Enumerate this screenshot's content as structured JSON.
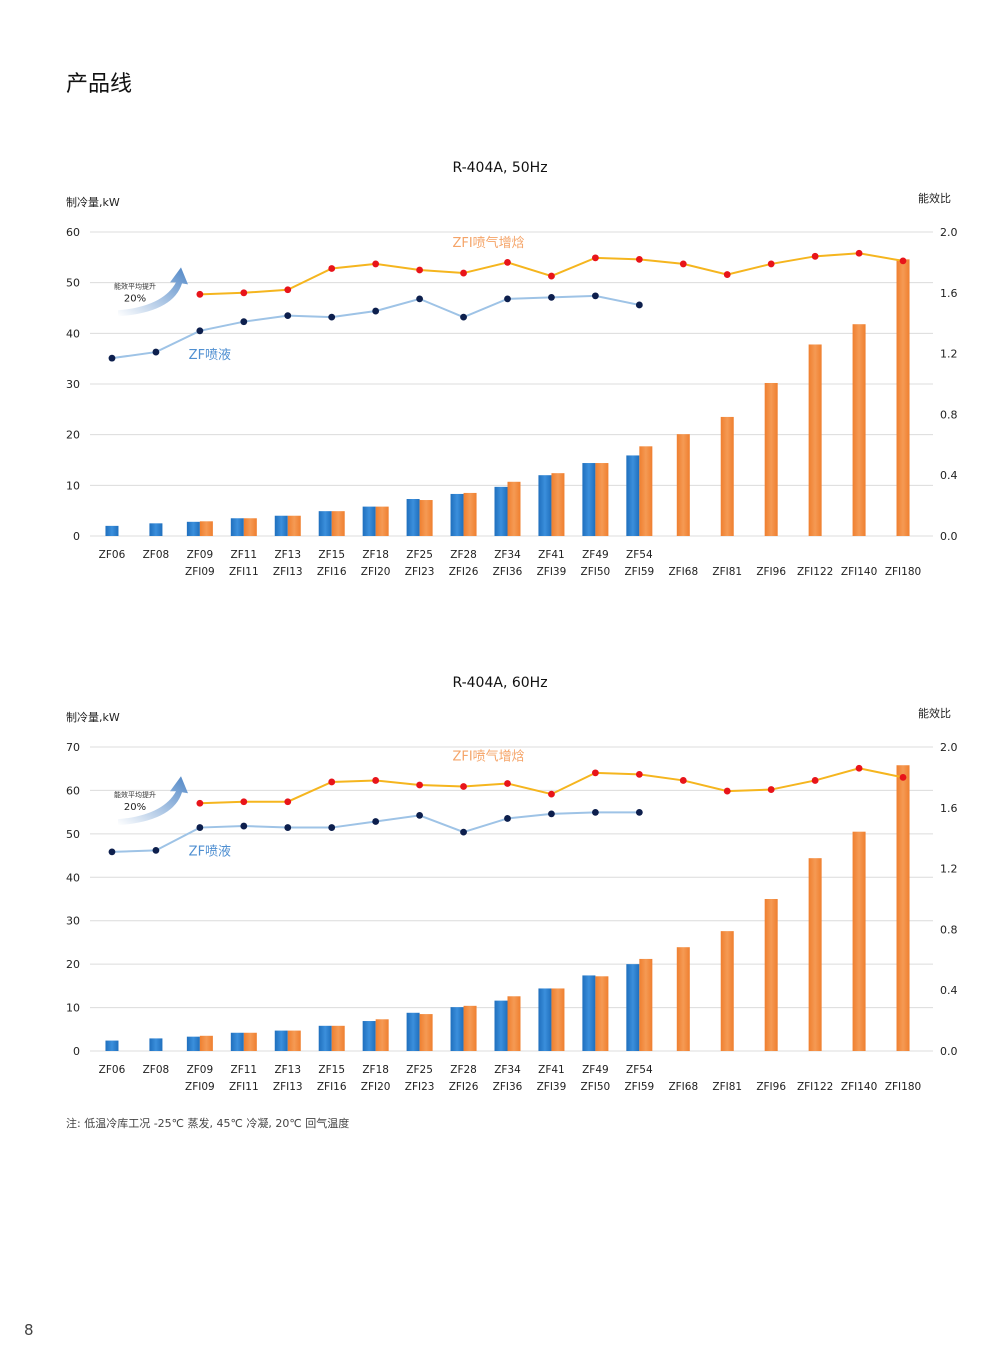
{
  "page": {
    "title": "产品线",
    "note": "注: 低温冷库工况 -25℃ 蒸发, 45℃ 冷凝, 20℃ 回气温度",
    "page_number": "8"
  },
  "colors": {
    "zf_bar": "#1f6fbd",
    "zfi_bar": "#ef7f2f",
    "zf_line": "#9ec3e6",
    "zf_dot": "#0d1f4d",
    "zfi_line": "#f5b51e",
    "zfi_dot": "#e8141a",
    "zf_label": "#4f8fd1",
    "zfi_label": "#f5a468",
    "arrow": "#4f86c6",
    "grid": "#dcdcdc"
  },
  "chart_data": [
    {
      "type": "bar",
      "title": "R-404A, 50Hz",
      "ylabel_left": "制冷量,kW",
      "ylabel_right": "能效比",
      "ylim_left": [
        0,
        60
      ],
      "yticks_left": [
        "0",
        "10",
        "20",
        "30",
        "40",
        "50",
        "60"
      ],
      "ylim_right": [
        0,
        2.0
      ],
      "yticks_right": [
        "0.0",
        "0.4",
        "0.8",
        "1.2",
        "1.6",
        "2.0"
      ],
      "grid": true,
      "zf_categories": [
        "ZF06",
        "ZF08",
        "ZF09",
        "ZF11",
        "ZF13",
        "ZF15",
        "ZF18",
        "ZF25",
        "ZF28",
        "ZF34",
        "ZF41",
        "ZF49",
        "ZF54",
        "",
        "",
        "",
        "",
        "",
        ""
      ],
      "zfi_categories": [
        "",
        "",
        "ZFI09",
        "ZFI11",
        "ZFI13",
        "ZFI16",
        "ZFI20",
        "ZFI23",
        "ZFI26",
        "ZFI36",
        "ZFI39",
        "ZFI50",
        "ZFI59",
        "ZFI68",
        "ZFI81",
        "ZFI96",
        "ZFI122",
        "ZFI140",
        "ZFI180"
      ],
      "series": [
        {
          "name": "ZF",
          "kind": "bar",
          "axis": "left",
          "values": [
            2.0,
            2.5,
            2.8,
            3.5,
            4.0,
            4.9,
            5.8,
            7.3,
            8.3,
            9.7,
            12.0,
            14.4,
            15.9,
            null,
            null,
            null,
            null,
            null,
            null
          ]
        },
        {
          "name": "ZFI",
          "kind": "bar",
          "axis": "left",
          "values": [
            null,
            null,
            2.9,
            3.5,
            4.0,
            4.9,
            5.8,
            7.1,
            8.5,
            10.7,
            12.4,
            14.4,
            17.7,
            20.1,
            23.5,
            30.2,
            37.8,
            41.8,
            54.6
          ]
        },
        {
          "name": "ZF喷液",
          "kind": "line",
          "axis": "right",
          "values": [
            1.17,
            1.21,
            1.35,
            1.41,
            1.45,
            1.44,
            1.48,
            1.56,
            1.44,
            1.56,
            1.57,
            1.58,
            1.52,
            null,
            null,
            null,
            null,
            null,
            null
          ]
        },
        {
          "name": "ZFI喷气增焓",
          "kind": "line",
          "axis": "right",
          "values": [
            null,
            null,
            1.59,
            1.6,
            1.62,
            1.76,
            1.79,
            1.75,
            1.73,
            1.8,
            1.71,
            1.83,
            1.82,
            1.79,
            1.72,
            1.79,
            1.84,
            1.86,
            1.81
          ]
        }
      ],
      "annotation": {
        "text": "能效平均提升",
        "value": "20%"
      }
    },
    {
      "type": "bar",
      "title": "R-404A, 60Hz",
      "ylabel_left": "制冷量,kW",
      "ylabel_right": "能效比",
      "ylim_left": [
        0,
        70
      ],
      "yticks_left": [
        "0",
        "10",
        "20",
        "30",
        "40",
        "50",
        "60",
        "70"
      ],
      "ylim_right": [
        0,
        2.0
      ],
      "yticks_right": [
        "0.0",
        "0.4",
        "0.8",
        "1.2",
        "1.6",
        "2.0"
      ],
      "grid": true,
      "zf_categories": [
        "ZF06",
        "ZF08",
        "ZF09",
        "ZF11",
        "ZF13",
        "ZF15",
        "ZF18",
        "ZF25",
        "ZF28",
        "ZF34",
        "ZF41",
        "ZF49",
        "ZF54",
        "",
        "",
        "",
        "",
        "",
        ""
      ],
      "zfi_categories": [
        "",
        "",
        "ZFI09",
        "ZFI11",
        "ZFI13",
        "ZFI16",
        "ZFI20",
        "ZFI23",
        "ZFI26",
        "ZFI36",
        "ZFI39",
        "ZFI50",
        "ZFI59",
        "ZFI68",
        "ZFI81",
        "ZFI96",
        "ZFI122",
        "ZFI140",
        "ZFI180"
      ],
      "series": [
        {
          "name": "ZF",
          "kind": "bar",
          "axis": "left",
          "values": [
            2.4,
            2.9,
            3.3,
            4.2,
            4.7,
            5.8,
            6.9,
            8.8,
            10.1,
            11.6,
            14.4,
            17.4,
            20.0,
            null,
            null,
            null,
            null,
            null,
            null
          ]
        },
        {
          "name": "ZFI",
          "kind": "bar",
          "axis": "left",
          "values": [
            null,
            null,
            3.5,
            4.2,
            4.7,
            5.8,
            7.3,
            8.5,
            10.4,
            12.6,
            14.4,
            17.2,
            21.2,
            23.9,
            27.6,
            35.0,
            44.4,
            50.5,
            65.8
          ]
        },
        {
          "name": "ZF喷液",
          "kind": "line",
          "axis": "right",
          "values": [
            1.31,
            1.32,
            1.47,
            1.48,
            1.47,
            1.47,
            1.51,
            1.55,
            1.44,
            1.53,
            1.56,
            1.57,
            1.57,
            null,
            null,
            null,
            null,
            null,
            null
          ]
        },
        {
          "name": "ZFI喷气增焓",
          "kind": "line",
          "axis": "right",
          "values": [
            null,
            null,
            1.63,
            1.64,
            1.64,
            1.77,
            1.78,
            1.75,
            1.74,
            1.76,
            1.69,
            1.83,
            1.82,
            1.78,
            1.71,
            1.72,
            1.78,
            1.86,
            1.8
          ]
        }
      ],
      "annotation": {
        "text": "能效平均提升",
        "value": "20%"
      }
    }
  ]
}
